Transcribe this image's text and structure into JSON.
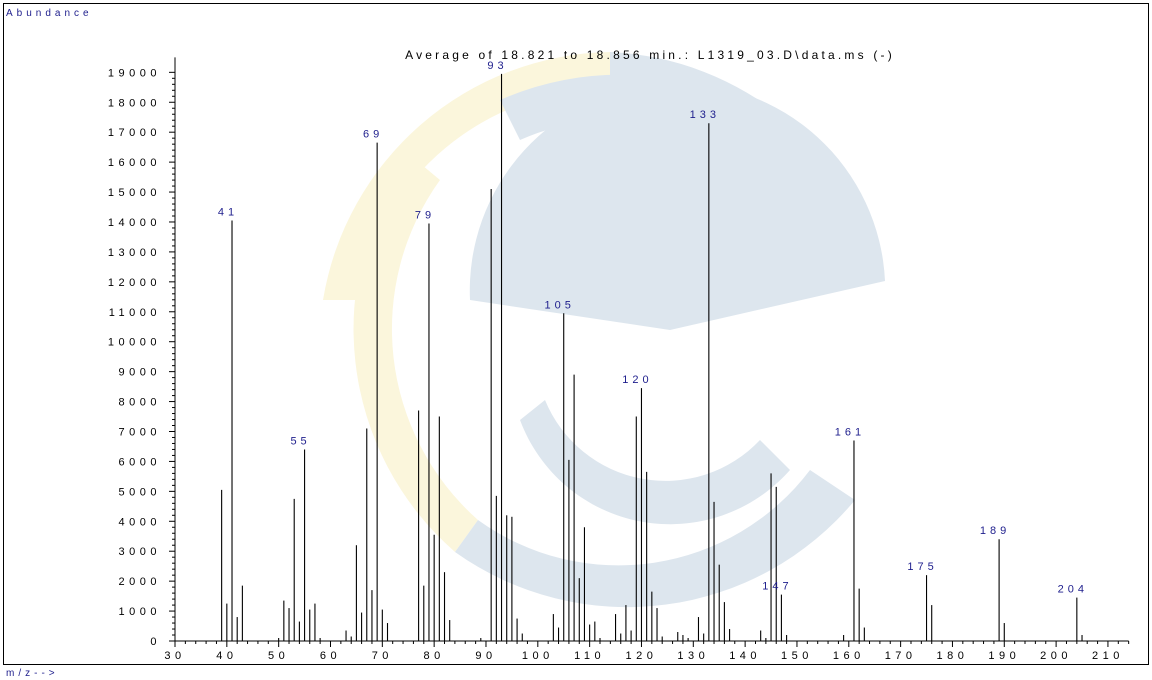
{
  "chart_data": {
    "type": "bar",
    "title": "Average of 18.821 to 18.856 min.: L1319_03.D\\data.ms (-)",
    "ylabel": "Abundance",
    "xlabel": "m/z-->",
    "xlim": [
      30,
      214
    ],
    "ylim": [
      0,
      19500
    ],
    "yticks": [
      0,
      1000,
      2000,
      3000,
      4000,
      5000,
      6000,
      7000,
      8000,
      9000,
      10000,
      11000,
      12000,
      13000,
      14000,
      15000,
      16000,
      17000,
      18000,
      19000
    ],
    "xticks": [
      30,
      40,
      50,
      60,
      70,
      80,
      90,
      100,
      110,
      120,
      130,
      140,
      150,
      160,
      170,
      180,
      190,
      200,
      210
    ],
    "peaks": [
      {
        "mz": 39,
        "abundance": 5050
      },
      {
        "mz": 40,
        "abundance": 1250
      },
      {
        "mz": 41,
        "abundance": 14050,
        "label": "41"
      },
      {
        "mz": 42,
        "abundance": 800
      },
      {
        "mz": 43,
        "abundance": 1850
      },
      {
        "mz": 50,
        "abundance": 100
      },
      {
        "mz": 51,
        "abundance": 1350
      },
      {
        "mz": 52,
        "abundance": 1100
      },
      {
        "mz": 53,
        "abundance": 4750
      },
      {
        "mz": 54,
        "abundance": 650
      },
      {
        "mz": 55,
        "abundance": 6400,
        "label": "55"
      },
      {
        "mz": 56,
        "abundance": 1050
      },
      {
        "mz": 57,
        "abundance": 1250
      },
      {
        "mz": 58,
        "abundance": 100
      },
      {
        "mz": 63,
        "abundance": 350
      },
      {
        "mz": 64,
        "abundance": 150
      },
      {
        "mz": 65,
        "abundance": 3200
      },
      {
        "mz": 66,
        "abundance": 950
      },
      {
        "mz": 67,
        "abundance": 7100
      },
      {
        "mz": 68,
        "abundance": 1700
      },
      {
        "mz": 69,
        "abundance": 16650,
        "label": "69"
      },
      {
        "mz": 70,
        "abundance": 1050
      },
      {
        "mz": 71,
        "abundance": 600
      },
      {
        "mz": 77,
        "abundance": 7700
      },
      {
        "mz": 78,
        "abundance": 1850
      },
      {
        "mz": 79,
        "abundance": 13950,
        "label": "79"
      },
      {
        "mz": 80,
        "abundance": 3550
      },
      {
        "mz": 81,
        "abundance": 7500
      },
      {
        "mz": 82,
        "abundance": 2300
      },
      {
        "mz": 83,
        "abundance": 700
      },
      {
        "mz": 89,
        "abundance": 100
      },
      {
        "mz": 91,
        "abundance": 15100
      },
      {
        "mz": 92,
        "abundance": 4850
      },
      {
        "mz": 93,
        "abundance": 18950,
        "label": "93"
      },
      {
        "mz": 94,
        "abundance": 4200
      },
      {
        "mz": 95,
        "abundance": 4150
      },
      {
        "mz": 96,
        "abundance": 750
      },
      {
        "mz": 97,
        "abundance": 250
      },
      {
        "mz": 103,
        "abundance": 900
      },
      {
        "mz": 104,
        "abundance": 450
      },
      {
        "mz": 105,
        "abundance": 10950,
        "label": "105"
      },
      {
        "mz": 106,
        "abundance": 6050
      },
      {
        "mz": 107,
        "abundance": 8900
      },
      {
        "mz": 108,
        "abundance": 2100
      },
      {
        "mz": 109,
        "abundance": 3800
      },
      {
        "mz": 110,
        "abundance": 550
      },
      {
        "mz": 111,
        "abundance": 650
      },
      {
        "mz": 112,
        "abundance": 100
      },
      {
        "mz": 115,
        "abundance": 900
      },
      {
        "mz": 116,
        "abundance": 250
      },
      {
        "mz": 117,
        "abundance": 1200
      },
      {
        "mz": 118,
        "abundance": 350
      },
      {
        "mz": 119,
        "abundance": 7500
      },
      {
        "mz": 120,
        "abundance": 8450,
        "label": "120"
      },
      {
        "mz": 121,
        "abundance": 5650
      },
      {
        "mz": 122,
        "abundance": 1650
      },
      {
        "mz": 123,
        "abundance": 1100
      },
      {
        "mz": 124,
        "abundance": 150
      },
      {
        "mz": 127,
        "abundance": 300
      },
      {
        "mz": 128,
        "abundance": 200
      },
      {
        "mz": 129,
        "abundance": 100
      },
      {
        "mz": 131,
        "abundance": 800
      },
      {
        "mz": 132,
        "abundance": 250
      },
      {
        "mz": 133,
        "abundance": 17300,
        "label": "133"
      },
      {
        "mz": 134,
        "abundance": 4650
      },
      {
        "mz": 135,
        "abundance": 2550
      },
      {
        "mz": 136,
        "abundance": 1300
      },
      {
        "mz": 137,
        "abundance": 400
      },
      {
        "mz": 143,
        "abundance": 350
      },
      {
        "mz": 144,
        "abundance": 100
      },
      {
        "mz": 145,
        "abundance": 5600
      },
      {
        "mz": 146,
        "abundance": 5150
      },
      {
        "mz": 147,
        "abundance": 1550,
        "label": "147"
      },
      {
        "mz": 148,
        "abundance": 200
      },
      {
        "mz": 159,
        "abundance": 200
      },
      {
        "mz": 161,
        "abundance": 6700,
        "label": "161"
      },
      {
        "mz": 162,
        "abundance": 1750
      },
      {
        "mz": 163,
        "abundance": 450
      },
      {
        "mz": 175,
        "abundance": 2200,
        "label": "175"
      },
      {
        "mz": 176,
        "abundance": 1200
      },
      {
        "mz": 189,
        "abundance": 3400,
        "label": "189"
      },
      {
        "mz": 190,
        "abundance": 600
      },
      {
        "mz": 204,
        "abundance": 1450,
        "label": "204"
      },
      {
        "mz": 205,
        "abundance": 200
      }
    ]
  },
  "colors": {
    "peak_label": "#1d1d8c",
    "axis": "#000000",
    "watermark_blue": "#dde6ee",
    "watermark_yellow": "#fbf6dc"
  }
}
